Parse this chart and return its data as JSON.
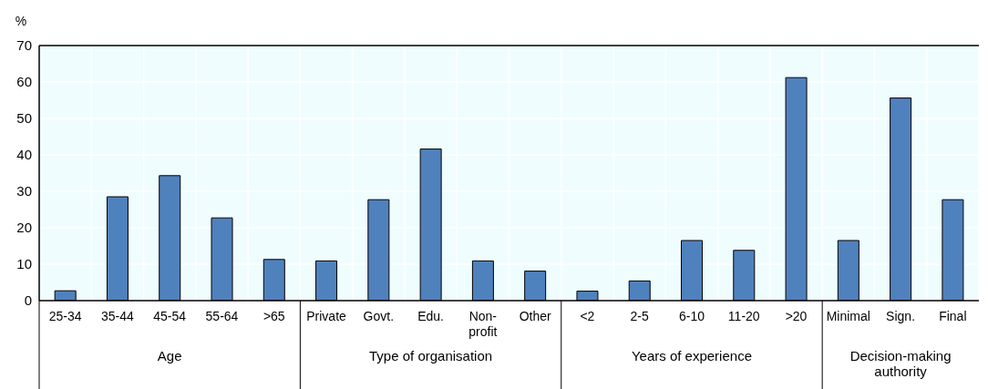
{
  "chart_data": {
    "type": "bar",
    "ylabel": "%",
    "categories": [
      "25-34",
      "35-44",
      "45-54",
      "55-64",
      ">65",
      "Private",
      "Govt.",
      "Edu.",
      "Non-profit",
      "Other",
      "<2",
      "2-5",
      "6-10",
      "11-20",
      ">20",
      "Minimal",
      "Sign.",
      "Final"
    ],
    "values": [
      2.7,
      28.5,
      34.3,
      22.7,
      11.3,
      10.9,
      27.7,
      41.6,
      10.9,
      8.1,
      2.6,
      5.4,
      16.5,
      13.8,
      61.2,
      16.5,
      55.6,
      27.7
    ],
    "color": "#4f81bd",
    "ylim": [
      0,
      70
    ],
    "yticks": [
      0,
      10,
      20,
      30,
      40,
      50,
      60,
      70
    ],
    "grid": true,
    "annotations": [
      "Age",
      "Type of organisation",
      "Years of experience",
      "Decision-making authority"
    ]
  }
}
